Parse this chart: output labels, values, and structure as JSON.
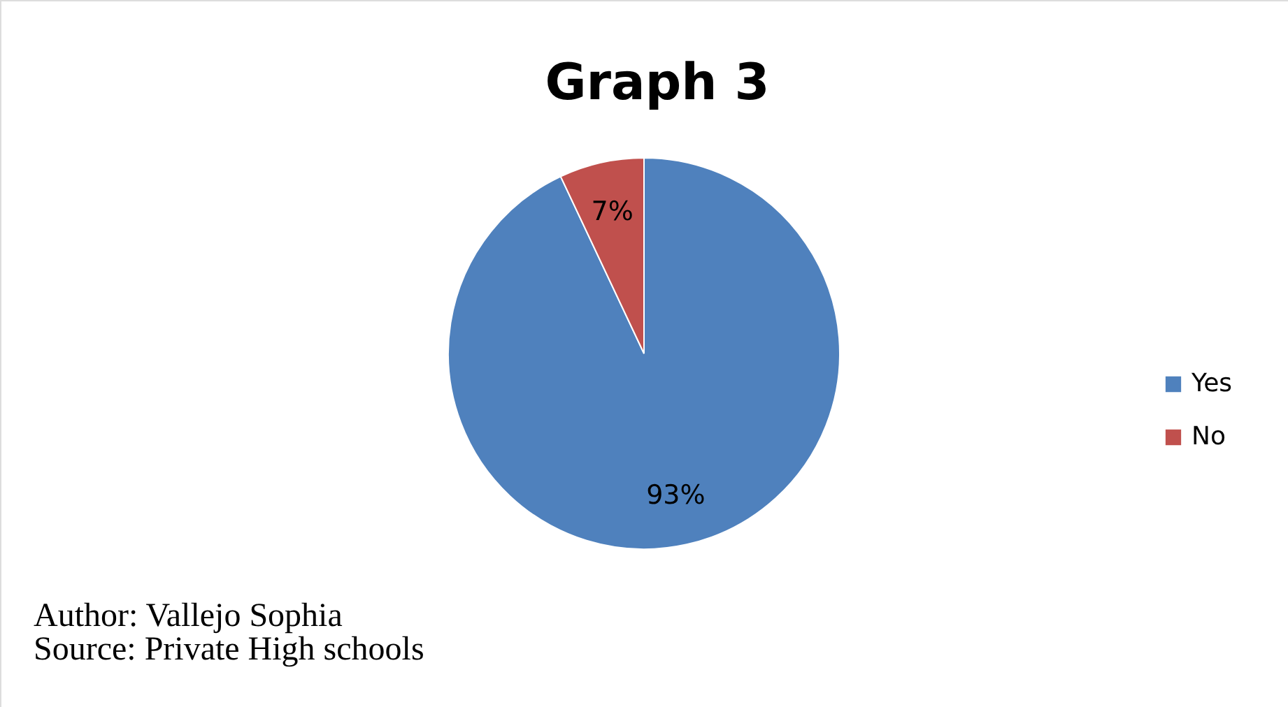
{
  "chart_data": {
    "type": "pie",
    "title": "Graph 3",
    "categories": [
      "Yes",
      "No"
    ],
    "values": [
      93,
      7
    ],
    "colors": [
      "#4f81bd",
      "#c0504d"
    ],
    "value_labels": [
      "93%",
      "7%"
    ],
    "legend": "right",
    "annotations": [
      "Author: Vallejo  Sophia",
      "Source: Private  High  schools"
    ]
  }
}
